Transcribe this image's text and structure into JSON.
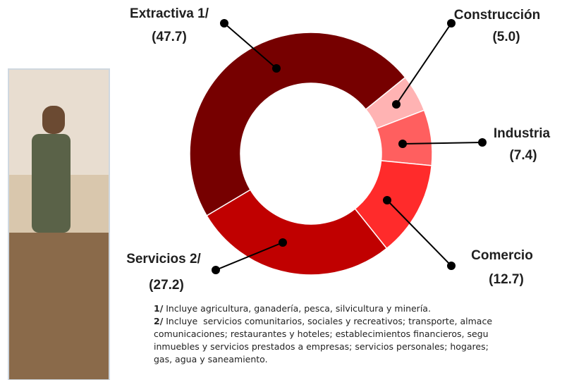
{
  "chart_data": {
    "type": "donut",
    "categories": [
      "Construcción",
      "Industria",
      "Comercio",
      "Servicios 2/",
      "Extractiva 1/"
    ],
    "values": [
      5.0,
      7.4,
      12.7,
      27.2,
      47.7
    ],
    "value_labels": [
      "(5.0)",
      "(7.4)",
      "(12.7)",
      "(27.2)",
      "(47.7)"
    ],
    "colors": [
      "#ffb3b3",
      "#ff5f5f",
      "#ff2b2b",
      "#c00000",
      "#760000"
    ]
  },
  "notes": [
    {
      "marker": "1/",
      "text": " Incluye agricultura, ganadería, pesca, silvicultura y minería."
    },
    {
      "marker": "2/",
      "text": " Incluye  servicios comunitarios, sociales y recreativos; transporte, almace"
    },
    {
      "text": "comunicaciones; restaurantes y hoteles; establecimientos financieros, segu"
    },
    {
      "text": "inmuebles y servicios prestados a empresas; servicios personales; hogares; "
    },
    {
      "text": "gas, agua y saneamiento."
    }
  ]
}
